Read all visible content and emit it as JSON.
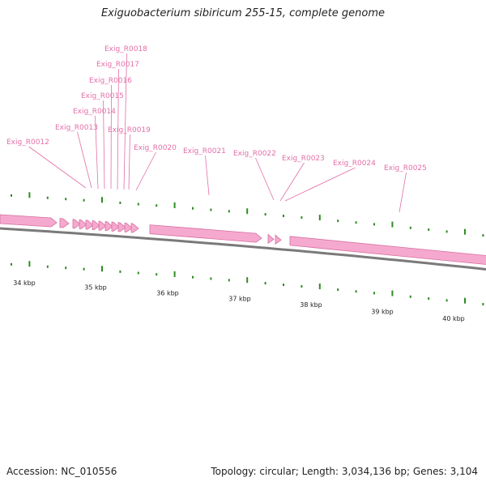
{
  "title": "Exiguobacterium sibiricum 255-15, complete genome",
  "footer": {
    "accession": "Accession: NC_010556",
    "summary": "Topology: circular; Length: 3,034,136 bp; Genes: 3,104"
  },
  "colors": {
    "gene": "#f6a9cf",
    "gene_edge": "#d56f9e",
    "label": "#e36fa8",
    "backbone": "#7a7a7a",
    "gc_tick": "#2e8b22"
  },
  "axis": {
    "unit": "kbp",
    "ticks": [
      "34 kbp",
      "35 kbp",
      "36 kbp",
      "37 kbp",
      "38 kbp",
      "39 kbp",
      "40 kbp"
    ]
  },
  "genes": [
    {
      "label": "Exig_R0012"
    },
    {
      "label": "Exig_R0013"
    },
    {
      "label": "Exig_R0014"
    },
    {
      "label": "Exig_R0015"
    },
    {
      "label": "Exig_R0016"
    },
    {
      "label": "Exig_R0017"
    },
    {
      "label": "Exig_R0018"
    },
    {
      "label": "Exig_R0019"
    },
    {
      "label": "Exig_R0020"
    },
    {
      "label": "Exig_R0021"
    },
    {
      "label": "Exig_R0022"
    },
    {
      "label": "Exig_R0023"
    },
    {
      "label": "Exig_R0024"
    },
    {
      "label": "Exig_R0025"
    }
  ]
}
